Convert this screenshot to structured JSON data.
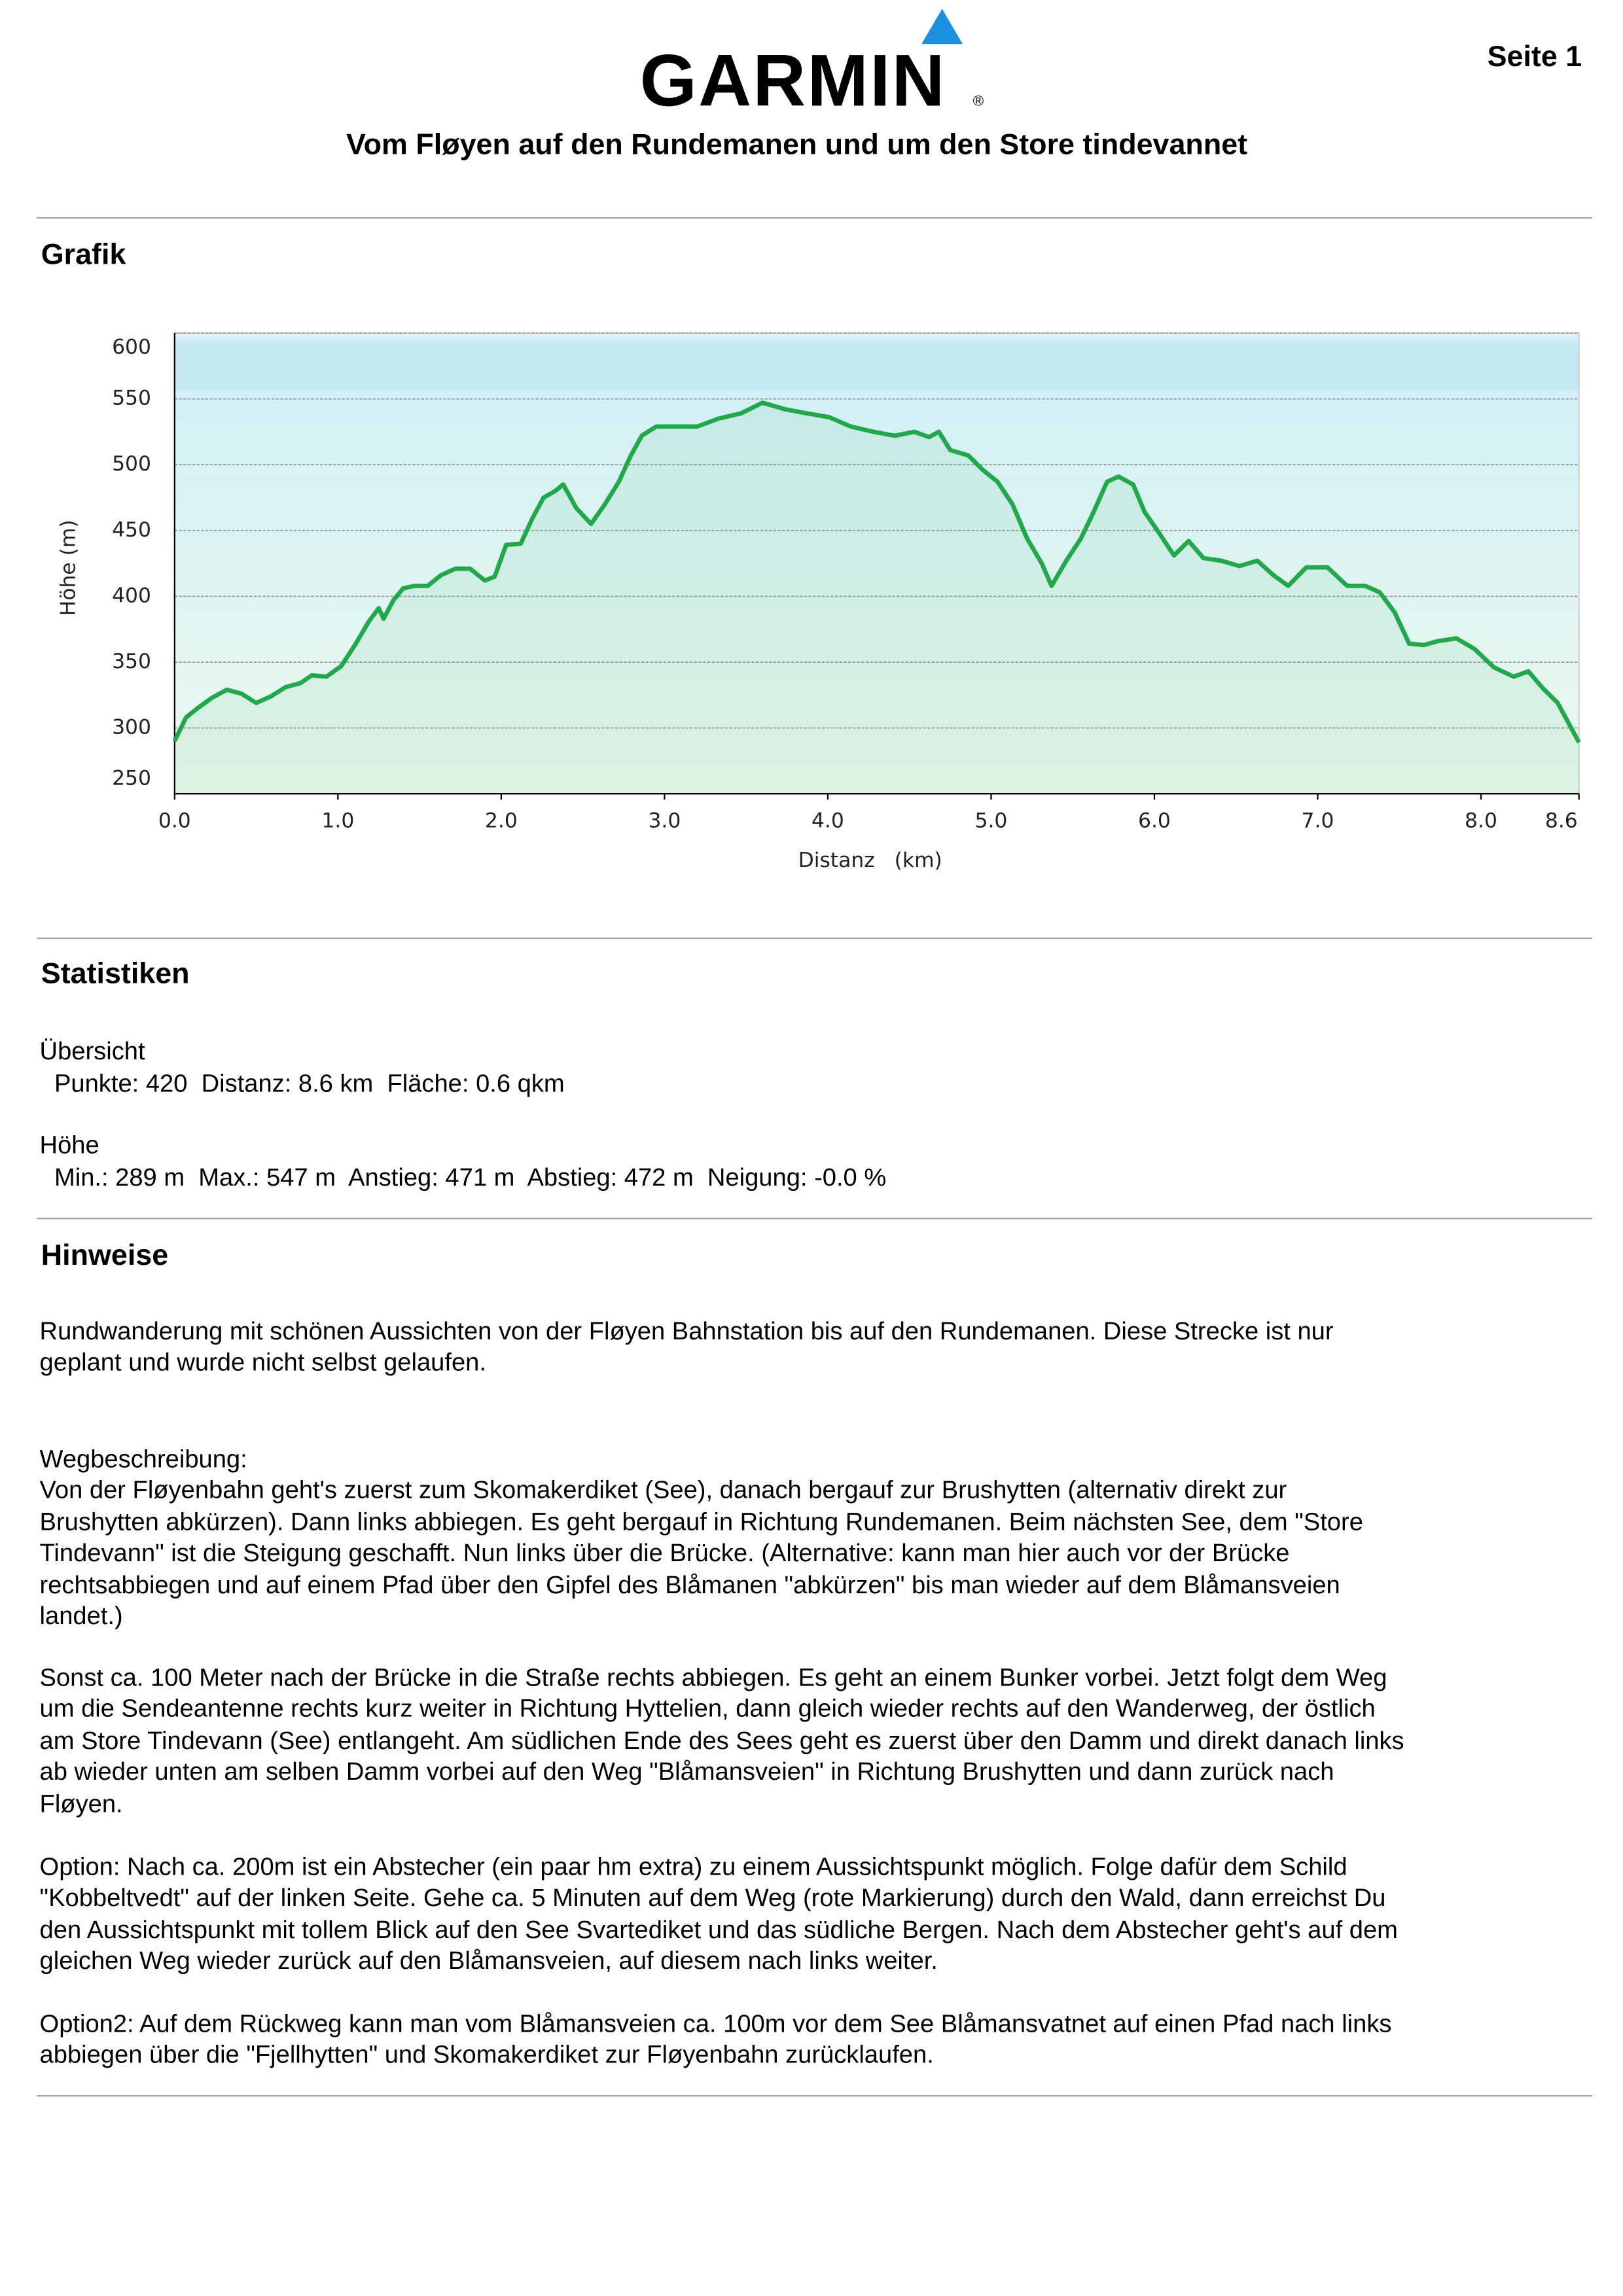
{
  "header": {
    "logo": "GARMIN",
    "logo_mark": "®",
    "page": "Seite 1",
    "title": "Vom Fløyen auf den Rundemanen und um den Store tindevannet"
  },
  "graph_heading": "Grafik",
  "chart_data": {
    "type": "line",
    "x_label": "Distanz   (km)",
    "y_label": "Höhe (m)",
    "color": "#22a84a",
    "grid": true,
    "xlim": [
      0,
      8.6
    ],
    "ylim": [
      250,
      600
    ],
    "xticks": [
      {
        "value": 0,
        "label": "0.0"
      },
      {
        "value": 1,
        "label": "1.0"
      },
      {
        "value": 2,
        "label": "2.0"
      },
      {
        "value": 3,
        "label": "3.0"
      },
      {
        "value": 4,
        "label": "4.0"
      },
      {
        "value": 5,
        "label": "5.0"
      },
      {
        "value": 6,
        "label": "6.0"
      },
      {
        "value": 7,
        "label": "7.0"
      },
      {
        "value": 8,
        "label": "8.0"
      },
      8.6
    ],
    "yticks": [
      250,
      300,
      350,
      400,
      450,
      500,
      550,
      600
    ],
    "x": [
      0,
      0.07,
      0.14,
      0.23,
      0.32,
      0.41,
      0.5,
      0.59,
      0.68,
      0.77,
      0.84,
      0.93,
      1.02,
      1.11,
      1.19,
      1.25,
      1.28,
      1.34,
      1.4,
      1.47,
      1.55,
      1.63,
      1.72,
      1.81,
      1.9,
      1.96,
      2.03,
      2.12,
      2.19,
      2.26,
      2.33,
      2.38,
      2.46,
      2.55,
      2.63,
      2.72,
      2.79,
      2.86,
      2.95,
      3.06,
      3.2,
      3.33,
      3.47,
      3.6,
      3.74,
      3.87,
      4.01,
      4.14,
      4.28,
      4.41,
      4.53,
      4.62,
      4.68,
      4.75,
      4.86,
      4.95,
      5.04,
      5.13,
      5.22,
      5.31,
      5.37,
      5.46,
      5.55,
      5.62,
      5.71,
      5.78,
      5.87,
      5.94,
      6.03,
      6.12,
      6.21,
      6.3,
      6.41,
      6.52,
      6.63,
      6.73,
      6.82,
      6.93,
      7.06,
      7.18,
      7.29,
      7.38,
      7.47,
      7.56,
      7.65,
      7.74,
      7.85,
      7.96,
      8.08,
      8.2,
      8.29,
      8.38,
      8.47,
      8.6
    ],
    "values": [
      290,
      308,
      315,
      323,
      329,
      326,
      319,
      324,
      331,
      334,
      340,
      339,
      347,
      364,
      381,
      391,
      383,
      397,
      406,
      408,
      408,
      416,
      421,
      421,
      412,
      415,
      439,
      440,
      459,
      475,
      480,
      485,
      467,
      455,
      469,
      487,
      506,
      522,
      529,
      529,
      529,
      535,
      539,
      547,
      542,
      539,
      536,
      529,
      525,
      522,
      525,
      521,
      525,
      511,
      507,
      496,
      487,
      470,
      444,
      425,
      408,
      427,
      444,
      462,
      487,
      491,
      485,
      464,
      448,
      431,
      442,
      429,
      427,
      423,
      427,
      416,
      408,
      422,
      422,
      408,
      408,
      403,
      388,
      364,
      363,
      366,
      368,
      360,
      346,
      339,
      343,
      330,
      319,
      289
    ]
  },
  "statistics": {
    "heading": "Statistiken",
    "groups": [
      {
        "title": "Übersicht",
        "line": "Punkte: 420  Distanz: 8.6 km  Fläche: 0.6 qkm"
      },
      {
        "title": "Höhe",
        "line": "Min.: 289 m  Max.: 547 m  Anstieg: 471 m  Abstieg: 472 m  Neigung: -0.0 %"
      }
    ]
  },
  "notes": {
    "heading": "Hinweise",
    "paragraphs": [
      [
        "Rundwanderung mit schönen Aussichten von der Fløyen Bahnstation bis auf den Rundemanen. Diese Strecke ist nur",
        "geplant und wurde nicht selbst gelaufen."
      ],
      [
        "Wegbeschreibung:",
        "Von der Fløyenbahn geht's zuerst zum Skomakerdiket (See), danach bergauf zur Brushytten (alternativ direkt zur",
        "Brushytten abkürzen). Dann links abbiegen. Es geht bergauf in Richtung Rundemanen. Beim nächsten See, dem \"Store",
        "Tindevann\" ist die Steigung geschafft. Nun links über die Brücke. (Alternative: kann man hier auch vor der Brücke",
        "rechtsabbiegen und auf einem Pfad über den Gipfel des Blåmanen \"abkürzen\" bis man wieder auf dem Blåmansveien",
        "landet.)"
      ],
      [
        "Sonst ca. 100 Meter nach der Brücke in die Straße rechts abbiegen. Es geht an einem Bunker vorbei. Jetzt folgt dem Weg",
        "um die Sendeantenne rechts kurz weiter in Richtung Hyttelien, dann gleich wieder rechts auf den Wanderweg, der östlich",
        "am Store Tindevann (See) entlangeht. Am südlichen Ende des Sees geht es zuerst über den Damm und direkt danach links",
        "ab wieder unten am selben Damm vorbei auf den Weg \"Blåmansveien\" in Richtung Brushytten und dann zurück nach",
        "Fløyen."
      ],
      [
        "Option: Nach ca. 200m ist ein Abstecher (ein paar hm extra) zu einem Aussichtspunkt möglich. Folge dafür dem Schild",
        "\"Kobbeltvedt\" auf der linken Seite. Gehe ca. 5 Minuten auf dem Weg (rote Markierung) durch den Wald, dann erreichst Du",
        "den Aussichtspunkt mit tollem Blick auf den See Svartediket und das südliche Bergen. Nach dem Abstecher geht's auf dem",
        "gleichen Weg wieder zurück auf den Blåmansveien, auf diesem nach links weiter."
      ],
      [
        "Option2: Auf dem Rückweg kann man vom Blåmansveien ca. 100m vor dem See Blåmansvatnet auf einen Pfad nach links",
        "abbiegen über die \"Fjellhytten\" und Skomakerdiket zur Fløyenbahn zurücklaufen."
      ]
    ]
  }
}
